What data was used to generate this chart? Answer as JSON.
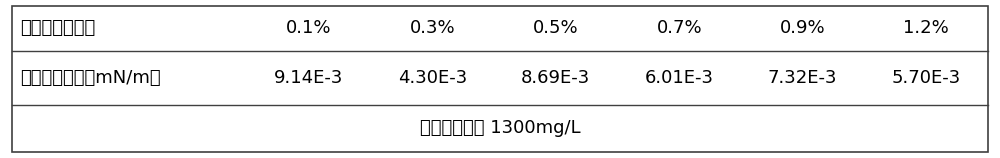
{
  "row1_label": "表面活性剂浓度",
  "row1_values": [
    "0.1%",
    "0.3%",
    "0.5%",
    "0.7%",
    "0.9%",
    "1.2%"
  ],
  "row2_label": "最低界面张力（mN/m）",
  "row2_values": [
    "9.14E-3",
    "4.30E-3",
    "8.69E-3",
    "6.01E-3",
    "7.32E-3",
    "5.70E-3"
  ],
  "footer_text": "聚合物浓度为 1300mg/L",
  "bg_color": "#ffffff",
  "border_color": "#404040",
  "text_color": "#000000",
  "font_size": 13,
  "footer_font_size": 13
}
